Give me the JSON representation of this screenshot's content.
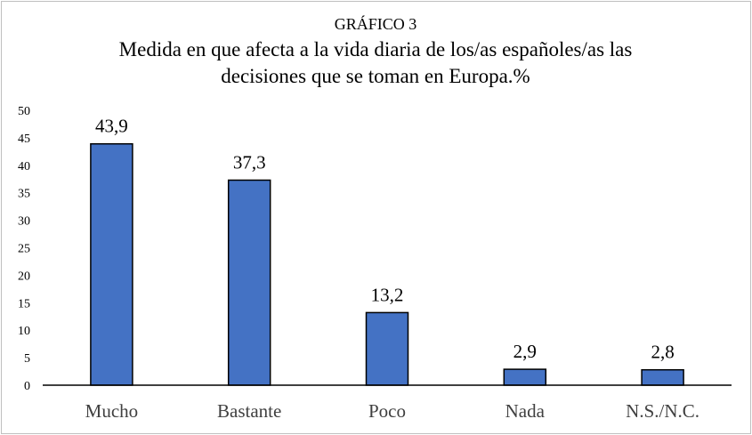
{
  "chart_data": {
    "type": "bar",
    "kicker": "GRÁFICO 3",
    "title_lines": [
      "Medida en que afecta a la vida diaria de los/as españoles/as las",
      "decisiones que se toman en Europa.%"
    ],
    "categories": [
      "Mucho",
      "Bastante",
      "Poco",
      "Nada",
      "N.S./N.C."
    ],
    "values": [
      43.9,
      37.3,
      13.2,
      2.9,
      2.8
    ],
    "data_labels": [
      "43,9",
      "37,3",
      "13,2",
      "2,9",
      "2,8"
    ],
    "ylim": [
      0,
      50
    ],
    "yticks": [
      0,
      5,
      10,
      15,
      20,
      25,
      30,
      35,
      40,
      45,
      50
    ],
    "grid": false,
    "legend": "none",
    "colors": {
      "bar": "#4472c4",
      "bar_stroke": "#000000",
      "axis": "#000000"
    }
  }
}
